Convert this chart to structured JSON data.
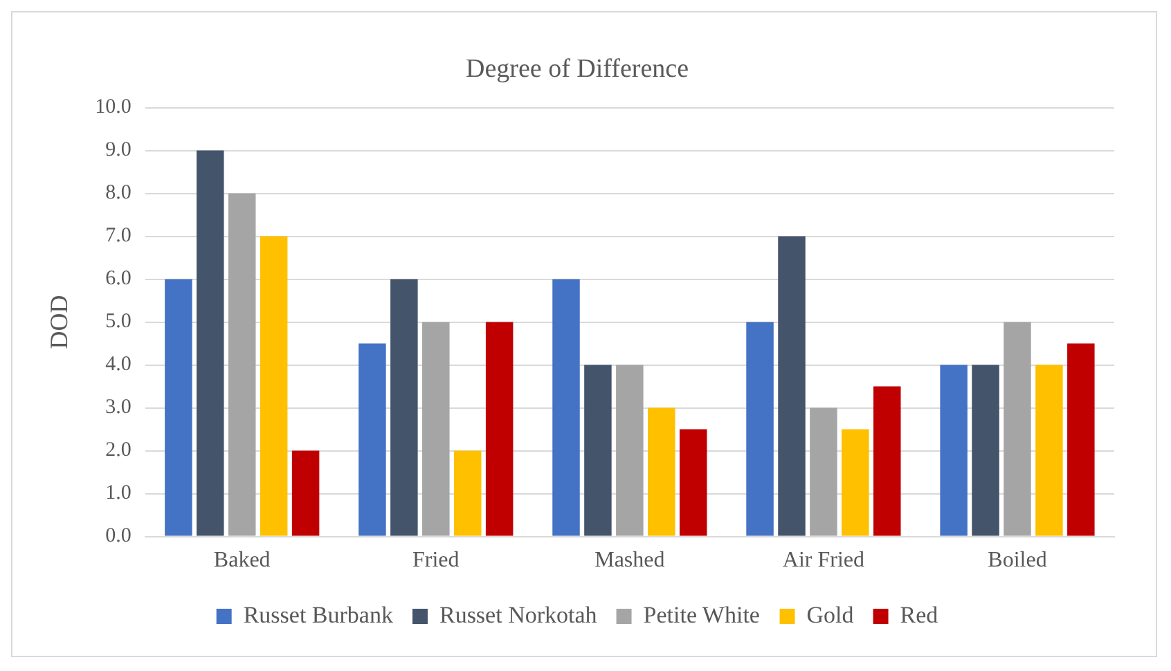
{
  "chart_data": {
    "type": "bar",
    "title": "Degree of Difference",
    "ylabel": "DOD",
    "categories": [
      "Baked",
      "Fried",
      "Mashed",
      "Air Fried",
      "Boiled"
    ],
    "series": [
      {
        "name": "Russet Burbank",
        "color": "#4472c4",
        "values": [
          6,
          4.5,
          6,
          5,
          4
        ]
      },
      {
        "name": "Russet Norkotah",
        "color": "#44546a",
        "values": [
          9,
          6,
          4,
          7,
          4
        ]
      },
      {
        "name": "Petite White",
        "color": "#a5a5a5",
        "values": [
          8,
          5,
          4,
          3,
          5
        ]
      },
      {
        "name": "Gold",
        "color": "#ffc000",
        "values": [
          7,
          2,
          3,
          2.5,
          4
        ]
      },
      {
        "name": "Red",
        "color": "#c00000",
        "values": [
          2,
          5,
          2.5,
          3.5,
          4.5
        ]
      }
    ],
    "ylim": [
      0,
      10
    ],
    "yticks": [
      {
        "value": 0,
        "label": "0.0"
      },
      {
        "value": 1,
        "label": "1.0"
      },
      {
        "value": 2,
        "label": "2.0"
      },
      {
        "value": 3,
        "label": "3.0"
      },
      {
        "value": 4,
        "label": "4.0"
      },
      {
        "value": 5,
        "label": "5.0"
      },
      {
        "value": 6,
        "label": "6.0"
      },
      {
        "value": 7,
        "label": "7.0"
      },
      {
        "value": 8,
        "label": "8.0"
      },
      {
        "value": 9,
        "label": "9.0"
      },
      {
        "value": 10,
        "label": "10.0"
      }
    ],
    "grid": "y",
    "legend": "bottom"
  }
}
